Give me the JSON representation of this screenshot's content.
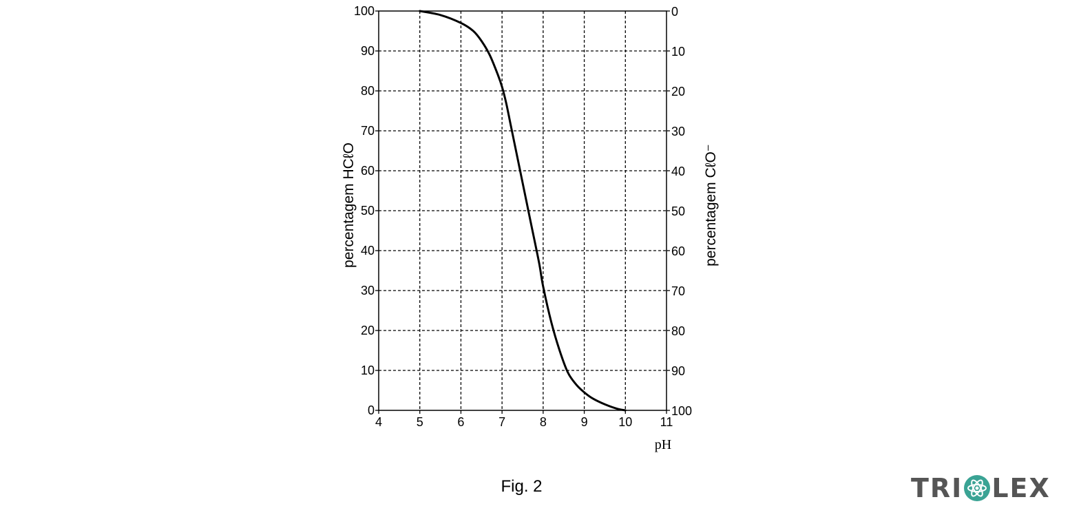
{
  "chart_data": {
    "type": "line",
    "title": "",
    "xlabel": "pH",
    "ylabel": "percentagem HCℓO",
    "y2label": "percentagem CℓO⁻",
    "xlim": [
      4,
      11
    ],
    "ylim": [
      0,
      100
    ],
    "y2lim": [
      100,
      0
    ],
    "xticks": [
      "4",
      "5",
      "6",
      "7",
      "8",
      "9",
      "10",
      "11"
    ],
    "yticks": [
      "0",
      "10",
      "20",
      "30",
      "40",
      "50",
      "60",
      "70",
      "80",
      "90",
      "100"
    ],
    "y2ticks": [
      "100",
      "90",
      "80",
      "70",
      "60",
      "50",
      "40",
      "30",
      "20",
      "10",
      "0"
    ],
    "grid": true,
    "grid_style": "dashed",
    "legend": "none",
    "line_color": "#000000",
    "series": [
      {
        "x": [
          5.0,
          5.5,
          6.0,
          6.3,
          6.5,
          6.7,
          6.9,
          7.0,
          7.1,
          7.2,
          7.3,
          7.5,
          7.7,
          7.9,
          8.0,
          8.2,
          8.4,
          8.6,
          8.8,
          9.0,
          9.2,
          9.5,
          9.8,
          10.0
        ],
        "y": [
          100,
          99,
          97,
          95,
          92.5,
          89,
          84,
          81,
          77,
          72,
          67,
          57,
          47,
          37,
          31,
          22,
          15,
          9.5,
          6.5,
          4.5,
          3,
          1.5,
          0.4,
          0
        ]
      }
    ]
  },
  "figure_caption": "Fig. 2",
  "logo": {
    "text": "TRIOLEX",
    "left_part": "TRI",
    "right_part": "LEX",
    "color": "#555555",
    "accent": "#3aa394",
    "mark_icon": "atom-icon"
  }
}
